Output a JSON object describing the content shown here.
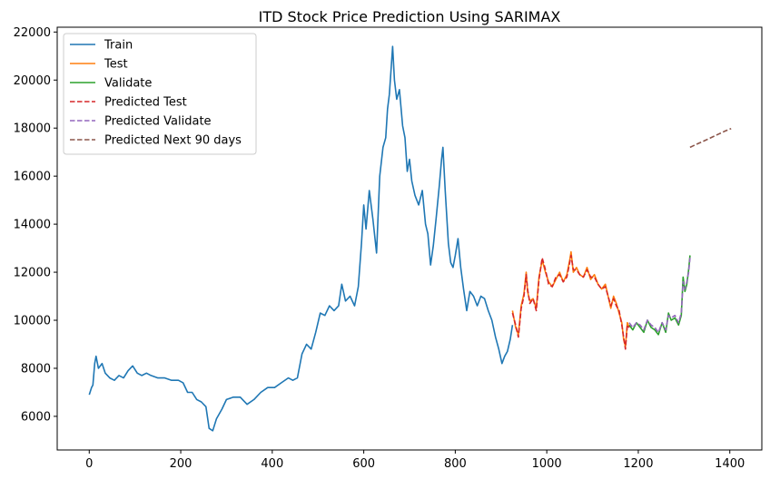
{
  "chart_data": {
    "type": "line",
    "title": "ITD Stock Price Prediction Using SARIMAX",
    "xlabel": "",
    "ylabel": "",
    "xlim": [
      -70,
      1470
    ],
    "ylim": [
      4600,
      22200
    ],
    "xticks": [
      0,
      200,
      400,
      600,
      800,
      1000,
      1200,
      1400
    ],
    "yticks": [
      6000,
      8000,
      10000,
      12000,
      14000,
      16000,
      18000,
      20000,
      22000
    ],
    "grid": false,
    "legend_position": "top-left",
    "series": [
      {
        "name": "Train",
        "color": "#1f77b4",
        "style": "solid",
        "points": [
          [
            0,
            6900
          ],
          [
            5,
            7200
          ],
          [
            8,
            7300
          ],
          [
            12,
            8200
          ],
          [
            15,
            8500
          ],
          [
            20,
            8000
          ],
          [
            28,
            8200
          ],
          [
            35,
            7800
          ],
          [
            45,
            7600
          ],
          [
            55,
            7500
          ],
          [
            65,
            7700
          ],
          [
            75,
            7600
          ],
          [
            85,
            7900
          ],
          [
            95,
            8100
          ],
          [
            105,
            7800
          ],
          [
            115,
            7700
          ],
          [
            125,
            7800
          ],
          [
            135,
            7700
          ],
          [
            150,
            7600
          ],
          [
            165,
            7600
          ],
          [
            180,
            7500
          ],
          [
            195,
            7500
          ],
          [
            205,
            7400
          ],
          [
            215,
            7000
          ],
          [
            225,
            7000
          ],
          [
            235,
            6700
          ],
          [
            245,
            6600
          ],
          [
            255,
            6400
          ],
          [
            262,
            5500
          ],
          [
            270,
            5400
          ],
          [
            278,
            5900
          ],
          [
            290,
            6300
          ],
          [
            300,
            6700
          ],
          [
            315,
            6800
          ],
          [
            330,
            6800
          ],
          [
            345,
            6500
          ],
          [
            360,
            6700
          ],
          [
            375,
            7000
          ],
          [
            390,
            7200
          ],
          [
            405,
            7200
          ],
          [
            420,
            7400
          ],
          [
            435,
            7600
          ],
          [
            445,
            7500
          ],
          [
            455,
            7600
          ],
          [
            465,
            8600
          ],
          [
            475,
            9000
          ],
          [
            485,
            8800
          ],
          [
            495,
            9500
          ],
          [
            505,
            10300
          ],
          [
            515,
            10200
          ],
          [
            525,
            10600
          ],
          [
            535,
            10400
          ],
          [
            545,
            10600
          ],
          [
            552,
            11500
          ],
          [
            560,
            10800
          ],
          [
            570,
            11000
          ],
          [
            580,
            10600
          ],
          [
            588,
            11400
          ],
          [
            595,
            13200
          ],
          [
            600,
            14800
          ],
          [
            605,
            13800
          ],
          [
            612,
            15400
          ],
          [
            620,
            14200
          ],
          [
            628,
            12800
          ],
          [
            635,
            16000
          ],
          [
            642,
            17200
          ],
          [
            648,
            17600
          ],
          [
            652,
            18800
          ],
          [
            656,
            19400
          ],
          [
            660,
            20500
          ],
          [
            663,
            21400
          ],
          [
            667,
            20000
          ],
          [
            672,
            19200
          ],
          [
            678,
            19600
          ],
          [
            685,
            18100
          ],
          [
            690,
            17600
          ],
          [
            695,
            16200
          ],
          [
            700,
            16700
          ],
          [
            705,
            15800
          ],
          [
            712,
            15200
          ],
          [
            720,
            14800
          ],
          [
            728,
            15400
          ],
          [
            735,
            14000
          ],
          [
            740,
            13600
          ],
          [
            746,
            12300
          ],
          [
            752,
            13100
          ],
          [
            758,
            14200
          ],
          [
            765,
            15600
          ],
          [
            770,
            16700
          ],
          [
            773,
            17200
          ],
          [
            778,
            15400
          ],
          [
            785,
            13200
          ],
          [
            790,
            12400
          ],
          [
            795,
            12200
          ],
          [
            800,
            12700
          ],
          [
            806,
            13400
          ],
          [
            812,
            12200
          ],
          [
            818,
            11300
          ],
          [
            825,
            10400
          ],
          [
            832,
            11200
          ],
          [
            840,
            11000
          ],
          [
            848,
            10600
          ],
          [
            856,
            11000
          ],
          [
            864,
            10900
          ],
          [
            872,
            10400
          ],
          [
            880,
            10000
          ],
          [
            888,
            9300
          ],
          [
            895,
            8800
          ],
          [
            902,
            8200
          ],
          [
            908,
            8500
          ],
          [
            914,
            8700
          ],
          [
            920,
            9200
          ],
          [
            925,
            9800
          ]
        ]
      },
      {
        "name": "Test",
        "color": "#ff7f0e",
        "style": "solid",
        "points": [
          [
            925,
            10400
          ],
          [
            932,
            9700
          ],
          [
            938,
            9400
          ],
          [
            944,
            10600
          ],
          [
            950,
            11100
          ],
          [
            955,
            12000
          ],
          [
            958,
            11200
          ],
          [
            963,
            10800
          ],
          [
            970,
            10900
          ],
          [
            977,
            10500
          ],
          [
            983,
            11800
          ],
          [
            990,
            12500
          ],
          [
            997,
            12000
          ],
          [
            1004,
            11600
          ],
          [
            1012,
            11400
          ],
          [
            1020,
            11700
          ],
          [
            1028,
            12000
          ],
          [
            1036,
            11600
          ],
          [
            1044,
            11900
          ],
          [
            1050,
            12500
          ],
          [
            1053,
            12850
          ],
          [
            1058,
            12000
          ],
          [
            1065,
            12200
          ],
          [
            1072,
            11900
          ],
          [
            1080,
            11800
          ],
          [
            1088,
            12200
          ],
          [
            1096,
            11700
          ],
          [
            1104,
            11900
          ],
          [
            1112,
            11500
          ],
          [
            1120,
            11300
          ],
          [
            1128,
            11500
          ],
          [
            1134,
            11000
          ],
          [
            1140,
            10500
          ],
          [
            1146,
            11000
          ],
          [
            1152,
            10700
          ],
          [
            1158,
            10300
          ],
          [
            1164,
            9900
          ],
          [
            1168,
            9200
          ],
          [
            1172,
            8900
          ],
          [
            1176,
            9900
          ],
          [
            1180,
            9700
          ]
        ]
      },
      {
        "name": "Validate",
        "color": "#2ca02c",
        "style": "solid",
        "points": [
          [
            1180,
            9800
          ],
          [
            1188,
            9600
          ],
          [
            1196,
            9900
          ],
          [
            1204,
            9700
          ],
          [
            1212,
            9500
          ],
          [
            1220,
            10000
          ],
          [
            1228,
            9700
          ],
          [
            1236,
            9600
          ],
          [
            1244,
            9400
          ],
          [
            1252,
            9900
          ],
          [
            1260,
            9500
          ],
          [
            1266,
            10300
          ],
          [
            1272,
            10000
          ],
          [
            1280,
            10100
          ],
          [
            1288,
            9800
          ],
          [
            1294,
            10200
          ],
          [
            1298,
            11800
          ],
          [
            1302,
            11200
          ],
          [
            1306,
            11500
          ],
          [
            1310,
            12100
          ],
          [
            1313,
            12700
          ]
        ]
      },
      {
        "name": "Predicted Test",
        "color": "#d62728",
        "style": "dashed",
        "points": [
          [
            925,
            10300
          ],
          [
            932,
            9800
          ],
          [
            938,
            9300
          ],
          [
            944,
            10500
          ],
          [
            950,
            11000
          ],
          [
            955,
            11900
          ],
          [
            958,
            11300
          ],
          [
            963,
            10700
          ],
          [
            970,
            10900
          ],
          [
            977,
            10400
          ],
          [
            983,
            11700
          ],
          [
            990,
            12600
          ],
          [
            997,
            12100
          ],
          [
            1004,
            11500
          ],
          [
            1012,
            11400
          ],
          [
            1020,
            11800
          ],
          [
            1028,
            11900
          ],
          [
            1036,
            11600
          ],
          [
            1044,
            11800
          ],
          [
            1050,
            12400
          ],
          [
            1053,
            12700
          ],
          [
            1058,
            12100
          ],
          [
            1065,
            12100
          ],
          [
            1072,
            11900
          ],
          [
            1080,
            11800
          ],
          [
            1088,
            12100
          ],
          [
            1096,
            11800
          ],
          [
            1104,
            11800
          ],
          [
            1112,
            11500
          ],
          [
            1120,
            11300
          ],
          [
            1128,
            11400
          ],
          [
            1134,
            11000
          ],
          [
            1140,
            10600
          ],
          [
            1146,
            10900
          ],
          [
            1152,
            10600
          ],
          [
            1158,
            10400
          ],
          [
            1164,
            9800
          ],
          [
            1168,
            9300
          ],
          [
            1172,
            8800
          ],
          [
            1176,
            9800
          ],
          [
            1180,
            9700
          ]
        ]
      },
      {
        "name": "Predicted Validate",
        "color": "#9467bd",
        "style": "dashed",
        "points": [
          [
            1180,
            9900
          ],
          [
            1188,
            9700
          ],
          [
            1196,
            9900
          ],
          [
            1204,
            9800
          ],
          [
            1212,
            9600
          ],
          [
            1220,
            10000
          ],
          [
            1228,
            9800
          ],
          [
            1236,
            9700
          ],
          [
            1244,
            9500
          ],
          [
            1252,
            9900
          ],
          [
            1260,
            9600
          ],
          [
            1266,
            10200
          ],
          [
            1272,
            10100
          ],
          [
            1280,
            10200
          ],
          [
            1288,
            9900
          ],
          [
            1294,
            10300
          ],
          [
            1298,
            11600
          ],
          [
            1302,
            11300
          ],
          [
            1306,
            11600
          ],
          [
            1310,
            12000
          ],
          [
            1313,
            12600
          ]
        ]
      },
      {
        "name": "Predicted Next 90 days",
        "color": "#8c564b",
        "style": "dashed",
        "points": [
          [
            1313,
            17200
          ],
          [
            1330,
            17350
          ],
          [
            1350,
            17520
          ],
          [
            1370,
            17700
          ],
          [
            1390,
            17880
          ],
          [
            1403,
            17980
          ]
        ]
      }
    ]
  }
}
